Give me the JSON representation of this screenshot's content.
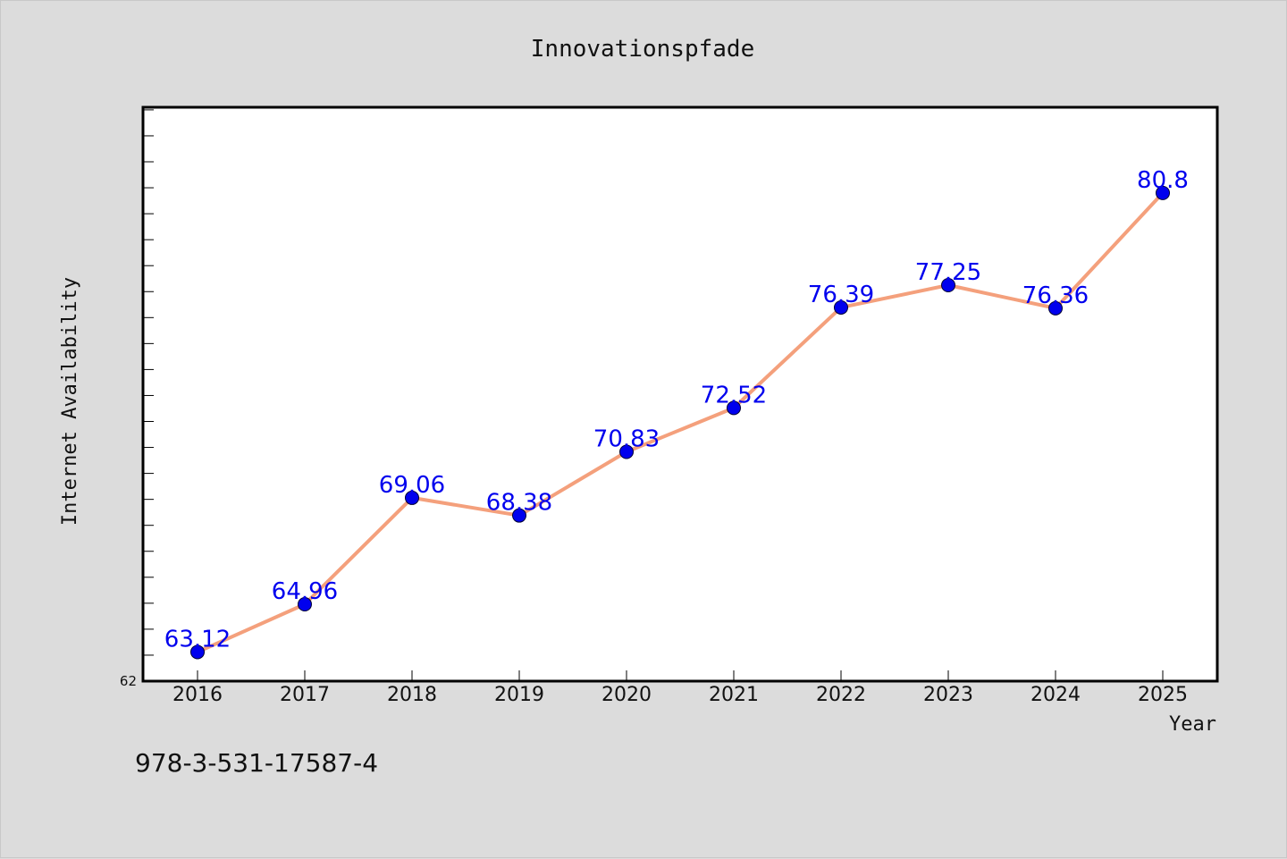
{
  "chart_data": {
    "type": "line",
    "title": "Innovationspfade",
    "xlabel": "Year",
    "ylabel": "Internet Availability",
    "categories": [
      "2016",
      "2017",
      "2018",
      "2019",
      "2020",
      "2021",
      "2022",
      "2023",
      "2024",
      "2025"
    ],
    "series": [
      {
        "values": [
          63.12,
          64.96,
          69.06,
          68.38,
          70.83,
          72.52,
          76.39,
          77.25,
          76.36,
          80.8
        ],
        "labels": [
          "63.12",
          "64.96",
          "69.06",
          "68.38",
          "70.83",
          "72.52",
          "76.39",
          "77.25",
          "76.36",
          "80.8"
        ]
      }
    ],
    "ylim": [
      62,
      84.1
    ],
    "y_tick_labels": [
      "62"
    ],
    "grid": false,
    "legend": "none",
    "colors": {
      "line": "#f4a07c",
      "marker": "#0000ee",
      "data_label": "#0000ee",
      "background": "#dcdcdc",
      "plot_background": "#ffffff"
    }
  },
  "footer_text": "978-3-531-17587-4"
}
